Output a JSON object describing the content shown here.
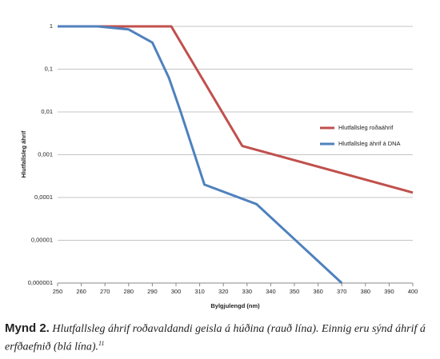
{
  "chart_data": {
    "type": "line",
    "y_label": "Hlutfallsleg áhrif",
    "x_label": "Bylgjulengd (nm)",
    "xlim": [
      250,
      400
    ],
    "xticks": [
      250,
      260,
      270,
      280,
      290,
      300,
      310,
      320,
      330,
      340,
      350,
      360,
      370,
      380,
      390,
      400
    ],
    "ylim": [
      1e-06,
      1
    ],
    "log_y": true,
    "grid": true,
    "legend": "right",
    "yticks": [
      1,
      {
        "value": 0.1,
        "label": "0,1"
      },
      {
        "value": 0.01,
        "label": "0,01"
      },
      {
        "value": 0.001,
        "label": "0,001"
      },
      {
        "value": 0.0001,
        "label": "0,0001"
      },
      {
        "value": 1e-05,
        "label": "0,00001"
      },
      {
        "value": 1e-06,
        "label": "0,000001"
      }
    ],
    "series": [
      {
        "name": "Hlutfallsleg roðaáhrif",
        "color": "#c0504d",
        "x": [
          250,
          298,
          328,
          400
        ],
        "values": [
          1,
          1,
          0.0016,
          0.00013
        ]
      },
      {
        "name": "Hlutfallsleg áhrif á DNA",
        "color": "#4f81bd",
        "x": [
          250,
          267,
          280,
          290,
          297,
          302,
          312,
          334,
          370
        ],
        "values": [
          1,
          1,
          0.85,
          0.42,
          0.063,
          0.01,
          0.0002,
          7e-05,
          1e-06
        ]
      }
    ]
  },
  "caption": {
    "label": "Mynd 2.",
    "text": "Hlutfallsleg áhrif roðavaldandi geisla á húðina (rauð lína). Einnig eru sýnd áhrif á erfðaefnið (blá lína).",
    "footnote": "11"
  }
}
